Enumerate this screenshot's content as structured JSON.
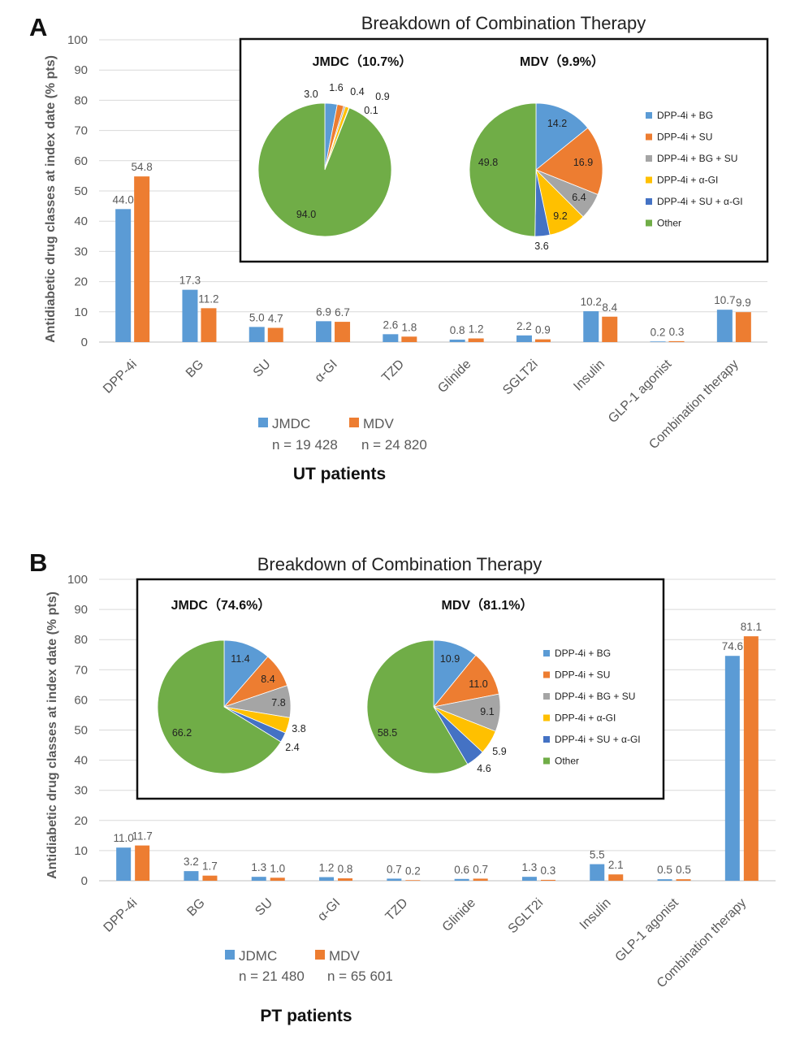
{
  "colors": {
    "jmdc": "#5b9bd5",
    "mdv": "#ed7d31",
    "grid": "#d9d9d9",
    "pie": [
      "#5b9bd5",
      "#ed7d31",
      "#a5a5a5",
      "#ffc000",
      "#4472c4",
      "#70ad47"
    ]
  },
  "panels": [
    {
      "letter": "A",
      "title": "Breakdown of Combination Therapy",
      "ylabel": "Antidiabetic drug classes at index date (% pts)",
      "subtitle": "UT patients",
      "legend": [
        {
          "name": "JMDC",
          "n": "n = 19 428"
        },
        {
          "name": "MDV",
          "n": "n = 24 820"
        }
      ],
      "pie_legend": [
        "DPP-4i + BG",
        "DPP-4i + SU",
        "DPP-4i + BG + SU",
        "DPP-4i + α-GI",
        "DPP-4i + SU + α-GI",
        "Other"
      ],
      "pies": [
        {
          "title": "JMDC（10.7%）",
          "values": [
            3.0,
            1.6,
            0.4,
            0.9,
            0.1,
            94.0
          ],
          "labels": [
            "3.0",
            "1.6",
            "0.4",
            "0.9",
            "0.1",
            "94.0"
          ]
        },
        {
          "title": "MDV（9.9%）",
          "values": [
            14.2,
            16.9,
            6.4,
            9.2,
            3.6,
            49.8
          ],
          "labels": [
            "14.2",
            "16.9",
            "6.4",
            "9.2",
            "3.6",
            "49.8"
          ]
        }
      ]
    },
    {
      "letter": "B",
      "title": "Breakdown of Combination Therapy",
      "ylabel": "Antidiabetic drug classes at index date (% pts)",
      "subtitle": "PT patients",
      "legend": [
        {
          "name": "JDMC",
          "n": "n = 21 480"
        },
        {
          "name": "MDV",
          "n": "n = 65 601"
        }
      ],
      "pie_legend": [
        "DPP-4i + BG",
        "DPP-4i + SU",
        "DPP-4i + BG + SU",
        "DPP-4i + α-GI",
        "DPP-4i + SU + α-GI",
        "Other"
      ],
      "pies": [
        {
          "title": "JMDC（74.6%）",
          "values": [
            11.4,
            8.4,
            7.8,
            3.8,
            2.4,
            66.2
          ],
          "labels": [
            "11.4",
            "8.4",
            "7.8",
            "3.8",
            "2.4",
            "66.2"
          ]
        },
        {
          "title": "MDV（81.1%）",
          "values": [
            10.9,
            11.0,
            9.1,
            5.9,
            4.6,
            58.5
          ],
          "labels": [
            "10.9",
            "11.0",
            "9.1",
            "5.9",
            "4.6",
            "58.5"
          ]
        }
      ]
    }
  ],
  "chart_data": [
    {
      "type": "bar",
      "panel": "A",
      "categories": [
        "DPP-4i",
        "BG",
        "SU",
        "α-GI",
        "TZD",
        "Glinide",
        "SGLT2i",
        "Insulin",
        "GLP-1 agonist",
        "Combination therapy"
      ],
      "series": [
        {
          "name": "JMDC",
          "values": [
            44.0,
            17.3,
            5.0,
            6.9,
            2.6,
            0.8,
            2.2,
            10.2,
            0.2,
            10.7
          ]
        },
        {
          "name": "MDV",
          "values": [
            54.8,
            11.2,
            4.7,
            6.7,
            1.8,
            1.2,
            0.9,
            8.4,
            0.3,
            9.9
          ]
        }
      ],
      "ylabel": "Antidiabetic drug classes at index date (% pts)",
      "ylim": [
        0,
        100
      ],
      "yticks": [
        "0",
        "10",
        "20",
        "30",
        "40",
        "50",
        "60",
        "70",
        "80",
        "90",
        "100"
      ],
      "grid": true,
      "legend": "bottom"
    },
    {
      "type": "bar",
      "panel": "B",
      "categories": [
        "DPP-4i",
        "BG",
        "SU",
        "α-GI",
        "TZD",
        "Glinide",
        "SGLT2i",
        "Insulin",
        "GLP-1 agonist",
        "Combination therapy"
      ],
      "series": [
        {
          "name": "JDMC",
          "values": [
            11.0,
            3.2,
            1.3,
            1.2,
            0.7,
            0.6,
            1.3,
            5.5,
            0.5,
            74.6
          ]
        },
        {
          "name": "MDV",
          "values": [
            11.7,
            1.7,
            1.0,
            0.8,
            0.2,
            0.7,
            0.3,
            2.1,
            0.5,
            81.1
          ]
        }
      ],
      "ylabel": "Antidiabetic drug classes at index date (% pts)",
      "ylim": [
        0,
        100
      ],
      "yticks": [
        "0",
        "10",
        "20",
        "30",
        "40",
        "50",
        "60",
        "70",
        "80",
        "90",
        "100"
      ],
      "grid": true,
      "legend": "bottom"
    },
    {
      "type": "pie",
      "panel": "A",
      "title": "JMDC（10.7%）",
      "categories": [
        "DPP-4i + BG",
        "DPP-4i + SU",
        "DPP-4i + BG + SU",
        "DPP-4i + α-GI",
        "DPP-4i + SU + α-GI",
        "Other"
      ],
      "values": [
        3.0,
        1.6,
        0.4,
        0.9,
        0.1,
        94.0
      ]
    },
    {
      "type": "pie",
      "panel": "A",
      "title": "MDV（9.9%）",
      "categories": [
        "DPP-4i + BG",
        "DPP-4i + SU",
        "DPP-4i + BG + SU",
        "DPP-4i + α-GI",
        "DPP-4i + SU + α-GI",
        "Other"
      ],
      "values": [
        14.2,
        16.9,
        6.4,
        9.2,
        3.6,
        49.8
      ]
    },
    {
      "type": "pie",
      "panel": "B",
      "title": "JMDC（74.6%）",
      "categories": [
        "DPP-4i + BG",
        "DPP-4i + SU",
        "DPP-4i + BG + SU",
        "DPP-4i + α-GI",
        "DPP-4i + SU + α-GI",
        "Other"
      ],
      "values": [
        11.4,
        8.4,
        7.8,
        3.8,
        2.4,
        66.2
      ]
    },
    {
      "type": "pie",
      "panel": "B",
      "title": "MDV（81.1%）",
      "categories": [
        "DPP-4i + BG",
        "DPP-4i + SU",
        "DPP-4i + BG + SU",
        "DPP-4i + α-GI",
        "DPP-4i + SU + α-GI",
        "Other"
      ],
      "values": [
        10.9,
        11.0,
        9.1,
        5.9,
        4.6,
        58.5
      ]
    }
  ]
}
